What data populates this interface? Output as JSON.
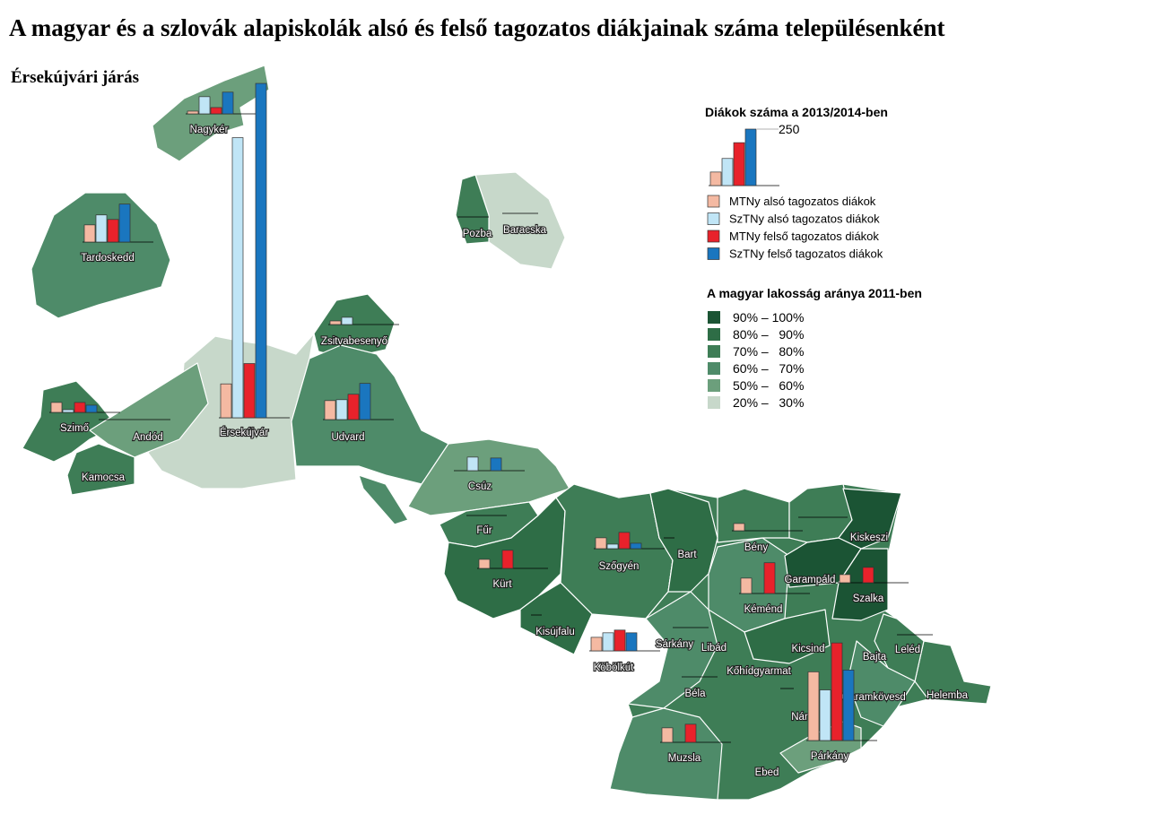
{
  "title": "A magyar és a szlovák alapiskolák alsó és felső tagozatos diákjainak száma településenként",
  "subtitle": "Érsekújvári járás",
  "legend": {
    "title": "Diákok száma a 2013/2014-ben",
    "scale_value": 250,
    "sample_values": [
      60,
      120,
      190,
      250
    ],
    "series": [
      {
        "name": "MTNy alsó tagozatos diákok",
        "color": "#f4b9a2"
      },
      {
        "name": "SzTNy alsó tagozatos diákok",
        "color": "#c0e5f6"
      },
      {
        "name": "MTNy felső tagozatos diákok",
        "color": "#e8222b"
      },
      {
        "name": "SzTNy felső tagozatos diákok",
        "color": "#1a76bf"
      }
    ]
  },
  "share_legend": {
    "title": "A magyar lakosság aránya 2011-ben",
    "classes": [
      {
        "label": "90% – 100%",
        "color": "#1b5434"
      },
      {
        "label": "80% –   90%",
        "color": "#2e6d46"
      },
      {
        "label": "70% –   80%",
        "color": "#3e7d56"
      },
      {
        "label": "60% –   70%",
        "color": "#4e8b69"
      },
      {
        "label": "50% –   60%",
        "color": "#6c9f7c"
      },
      {
        "label": "20% –   30%",
        "color": "#c7d8ca"
      }
    ]
  },
  "settlements": [
    {
      "name": "Nagykér",
      "values": [
        12,
        76,
        28,
        96
      ]
    },
    {
      "name": "Tardoskedd",
      "values": [
        76,
        120,
        100,
        168
      ]
    },
    {
      "name": "Pozba"
    },
    {
      "name": "Baracska"
    },
    {
      "name": "Zsitvabesenyő",
      "values": [
        16,
        32,
        0,
        0
      ]
    },
    {
      "name": "Szimő",
      "values": [
        44,
        12,
        44,
        32
      ]
    },
    {
      "name": "Andód"
    },
    {
      "name": "Érsekújvár",
      "values": [
        150,
        1240,
        240,
        1480
      ]
    },
    {
      "name": "Udvard",
      "values": [
        84,
        88,
        112,
        160
      ]
    },
    {
      "name": "Kamocsa"
    },
    {
      "name": "Csúz",
      "values": [
        0,
        60,
        0,
        56
      ]
    },
    {
      "name": "Fűr"
    },
    {
      "name": "Kürt",
      "values": [
        40,
        0,
        80,
        0
      ]
    },
    {
      "name": "Szőgyén",
      "values": [
        48,
        20,
        72,
        24
      ]
    },
    {
      "name": "Bart"
    },
    {
      "name": "Bény",
      "values": [
        32,
        0,
        0,
        0
      ]
    },
    {
      "name": "Garampáld"
    },
    {
      "name": "Kiskeszi"
    },
    {
      "name": "Szalka",
      "values": [
        36,
        0,
        68,
        0
      ]
    },
    {
      "name": "Kéménd",
      "values": [
        68,
        0,
        136,
        0
      ]
    },
    {
      "name": "Kisújfalu"
    },
    {
      "name": "Sárkány"
    },
    {
      "name": "Libád"
    },
    {
      "name": "Kicsind"
    },
    {
      "name": "Bajta"
    },
    {
      "name": "Leléd"
    },
    {
      "name": "Köbölkút",
      "values": [
        60,
        80,
        92,
        80
      ]
    },
    {
      "name": "Kőhídgyarmat"
    },
    {
      "name": "Béla"
    },
    {
      "name": "Garamkövesd"
    },
    {
      "name": "Helemba"
    },
    {
      "name": "Nána",
      "values": [
        304,
        224,
        432,
        312
      ]
    },
    {
      "name": "Muzsla",
      "values": [
        64,
        0,
        80,
        0
      ]
    },
    {
      "name": "Párkány"
    },
    {
      "name": "Ebed"
    }
  ]
}
